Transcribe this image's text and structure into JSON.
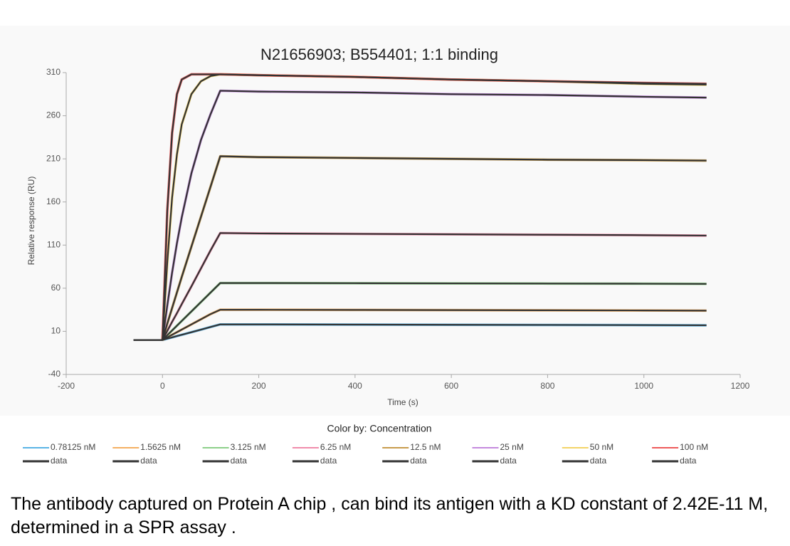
{
  "chart_data": {
    "type": "line",
    "title": "N21656903; B554401; 1:1 binding",
    "x_label": "Time (s)",
    "y_label": "Relative response (RU)",
    "legend_title": "Color by: Concentration",
    "xlim": [
      -200,
      1200
    ],
    "xticks": [
      -200,
      0,
      200,
      400,
      600,
      800,
      1000,
      1200
    ],
    "ylim": [
      -40,
      310
    ],
    "yticks": [
      -40,
      10,
      60,
      110,
      160,
      210,
      260,
      310
    ],
    "x": [
      -60,
      -40,
      -20,
      0,
      10,
      20,
      30,
      40,
      60,
      80,
      100,
      120,
      200,
      400,
      600,
      800,
      1000,
      1130
    ],
    "series": [
      {
        "name": "0.78125 nM",
        "color": "#5ab4e6",
        "values": [
          null,
          null,
          null,
          0,
          1.5,
          3,
          4.5,
          6,
          9,
          12,
          15,
          18,
          18,
          17.8,
          17.6,
          17.4,
          17.2,
          17
        ]
      },
      {
        "name": "data",
        "color": "#333333",
        "values": [
          0,
          0,
          0,
          0,
          1.5,
          3,
          4.5,
          6,
          9,
          12,
          15,
          18,
          18,
          17.8,
          17.6,
          17.4,
          17.2,
          17
        ]
      },
      {
        "name": "1.5625 nM",
        "color": "#f5b062",
        "values": [
          null,
          null,
          null,
          0,
          3,
          6,
          9,
          12,
          18,
          24,
          30,
          35,
          35,
          34.8,
          34.6,
          34.4,
          34.2,
          34
        ]
      },
      {
        "name": "data",
        "color": "#333333",
        "values": [
          0,
          0,
          0,
          0,
          3,
          6,
          9,
          12,
          18,
          24,
          30,
          35,
          35,
          34.8,
          34.6,
          34.4,
          34.2,
          34
        ]
      },
      {
        "name": "3.125 nM",
        "color": "#8dd08a",
        "values": [
          null,
          null,
          null,
          0,
          5.5,
          11,
          16.5,
          22,
          33,
          44,
          55,
          66,
          66,
          65.8,
          65.6,
          65.4,
          65.2,
          65
        ]
      },
      {
        "name": "data",
        "color": "#333333",
        "values": [
          0,
          0,
          0,
          0,
          5.5,
          11,
          16.5,
          22,
          33,
          44,
          55,
          66,
          66,
          65.8,
          65.6,
          65.4,
          65.2,
          65
        ]
      },
      {
        "name": "6.25 nM",
        "color": "#f08cab",
        "values": [
          null,
          null,
          null,
          0,
          10.5,
          21,
          31,
          41.5,
          62,
          83,
          104,
          124,
          123.5,
          123,
          122.5,
          122,
          121.5,
          121
        ]
      },
      {
        "name": "data",
        "color": "#333333",
        "values": [
          0,
          0,
          0,
          0,
          10.5,
          21,
          31,
          41.5,
          62,
          83,
          104,
          124,
          123.5,
          123,
          122.5,
          122,
          121.5,
          121
        ]
      },
      {
        "name": "12.5 nM",
        "color": "#c89c4c",
        "values": [
          null,
          null,
          null,
          0,
          19,
          37,
          55,
          73,
          108,
          143,
          178,
          213,
          212,
          211,
          210,
          209,
          208.5,
          208
        ]
      },
      {
        "name": "data",
        "color": "#333333",
        "values": [
          0,
          0,
          0,
          0,
          19,
          37,
          55,
          73,
          108,
          143,
          178,
          213,
          212,
          211,
          210,
          209,
          208.5,
          208
        ]
      },
      {
        "name": "25 nM",
        "color": "#c48ade",
        "values": [
          null,
          null,
          null,
          0,
          40,
          78,
          112,
          142,
          193,
          232,
          262,
          289,
          288,
          287,
          285,
          284,
          282,
          281
        ]
      },
      {
        "name": "data",
        "color": "#333333",
        "values": [
          0,
          0,
          0,
          0,
          40,
          78,
          112,
          142,
          193,
          232,
          262,
          289,
          288,
          287,
          285,
          284,
          282,
          281
        ]
      },
      {
        "name": "50 nM",
        "color": "#f3d468",
        "values": [
          null,
          null,
          null,
          0,
          90,
          165,
          215,
          250,
          285,
          300,
          306,
          308,
          307,
          305,
          302,
          300,
          297,
          296
        ]
      },
      {
        "name": "data",
        "color": "#333333",
        "values": [
          0,
          0,
          0,
          0,
          90,
          165,
          215,
          250,
          285,
          300,
          306,
          308,
          307,
          305,
          302,
          300,
          297,
          296
        ]
      },
      {
        "name": "100 nM",
        "color": "#ee5a5a",
        "values": [
          null,
          null,
          null,
          0,
          150,
          240,
          285,
          302,
          308,
          308,
          308,
          308,
          307,
          305,
          302,
          300,
          298,
          297
        ]
      },
      {
        "name": "data",
        "color": "#333333",
        "values": [
          0,
          0,
          0,
          0,
          150,
          240,
          285,
          302,
          308,
          308,
          308,
          308,
          307,
          305,
          302,
          300,
          298,
          297
        ]
      }
    ]
  },
  "caption": "The antibody captured on Protein A chip , can bind its antigen with a KD constant of 2.42E-11 M, determined in a SPR assay ."
}
